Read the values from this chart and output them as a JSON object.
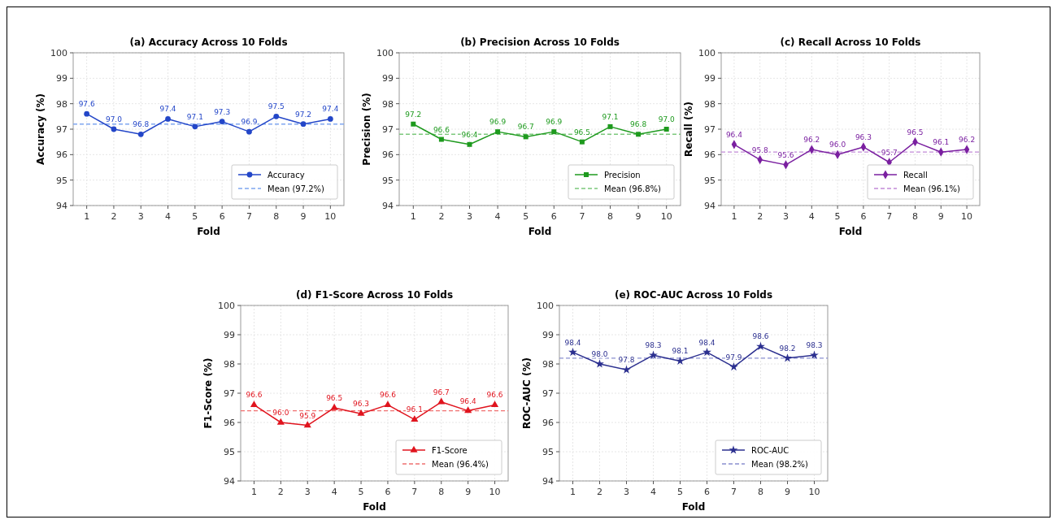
{
  "chart_data": [
    {
      "type": "line",
      "title": "(a) Accuracy Across 10 Folds",
      "xlabel": "Fold",
      "ylabel": "Accuracy (%)",
      "categories": [
        "1",
        "2",
        "3",
        "4",
        "5",
        "6",
        "7",
        "8",
        "9",
        "10"
      ],
      "series": [
        {
          "name": "Accuracy",
          "color": "#2346c8",
          "values": [
            97.6,
            97.0,
            96.8,
            97.4,
            97.1,
            97.3,
            96.9,
            97.5,
            97.2,
            97.4
          ],
          "value_labels": [
            "97.6",
            "97.0",
            "96.8",
            "97.4",
            "97.1",
            "97.3",
            "96.9",
            "97.5",
            "97.2",
            "97.4"
          ]
        }
      ],
      "ref_lines": [
        {
          "axis": "y",
          "value": 97.2,
          "label": "Mean (97.2%)",
          "color": "#7fa6f0",
          "line_style": "dashed"
        }
      ],
      "ylim": [
        94,
        100
      ],
      "yticks": [
        94,
        95,
        96,
        97,
        98,
        99,
        100
      ],
      "grid": true,
      "legend": "bottom right",
      "marker": "circle"
    },
    {
      "type": "line",
      "title": "(b) Precision Across 10 Folds",
      "xlabel": "Fold",
      "ylabel": "Precision (%)",
      "categories": [
        "1",
        "2",
        "3",
        "4",
        "5",
        "6",
        "7",
        "8",
        "9",
        "10"
      ],
      "series": [
        {
          "name": "Precision",
          "color": "#1e9a1e",
          "values": [
            97.2,
            96.6,
            96.4,
            96.9,
            96.7,
            96.9,
            96.5,
            97.1,
            96.8,
            97.0
          ],
          "value_labels": [
            "97.2",
            "96.6",
            "96.4",
            "96.9",
            "96.7",
            "96.9",
            "96.5",
            "97.1",
            "96.8",
            "97.0"
          ]
        }
      ],
      "ref_lines": [
        {
          "axis": "y",
          "value": 96.8,
          "label": "Mean (96.8%)",
          "color": "#7cc87c",
          "line_style": "dashed"
        }
      ],
      "ylim": [
        94,
        100
      ],
      "yticks": [
        94,
        95,
        96,
        97,
        98,
        99,
        100
      ],
      "grid": true,
      "legend": "bottom right",
      "marker": "square"
    },
    {
      "type": "line",
      "title": "(c) Recall Across 10 Folds",
      "xlabel": "Fold",
      "ylabel": "Recall (%)",
      "categories": [
        "1",
        "2",
        "3",
        "4",
        "5",
        "6",
        "7",
        "8",
        "9",
        "10"
      ],
      "series": [
        {
          "name": "Recall",
          "color": "#7a1fa0",
          "values": [
            96.4,
            95.8,
            95.6,
            96.2,
            96.0,
            96.3,
            95.7,
            96.5,
            96.1,
            96.2
          ],
          "value_labels": [
            "96.4",
            "95.8",
            "95.6",
            "96.2",
            "96.0",
            "96.3",
            "95.7",
            "96.5",
            "96.1",
            "96.2"
          ]
        }
      ],
      "ref_lines": [
        {
          "axis": "y",
          "value": 96.1,
          "label": "Mean (96.1%)",
          "color": "#c28ad8",
          "line_style": "dashed"
        }
      ],
      "ylim": [
        94,
        100
      ],
      "yticks": [
        94,
        95,
        96,
        97,
        98,
        99,
        100
      ],
      "grid": true,
      "legend": "bottom right",
      "marker": "diamond"
    },
    {
      "type": "line",
      "title": "(d) F1-Score Across 10 Folds",
      "xlabel": "Fold",
      "ylabel": "F1-Score (%)",
      "categories": [
        "1",
        "2",
        "3",
        "4",
        "5",
        "6",
        "7",
        "8",
        "9",
        "10"
      ],
      "series": [
        {
          "name": "F1-Score",
          "color": "#e0141e",
          "values": [
            96.6,
            96.0,
            95.9,
            96.5,
            96.3,
            96.6,
            96.1,
            96.7,
            96.4,
            96.6
          ],
          "value_labels": [
            "96.6",
            "96.0",
            "95.9",
            "96.5",
            "96.3",
            "96.6",
            "96.1",
            "96.7",
            "96.4",
            "96.6"
          ]
        }
      ],
      "ref_lines": [
        {
          "axis": "y",
          "value": 96.4,
          "label": "Mean (96.4%)",
          "color": "#f07070",
          "line_style": "dashed"
        }
      ],
      "ylim": [
        94,
        100
      ],
      "yticks": [
        94,
        95,
        96,
        97,
        98,
        99,
        100
      ],
      "grid": true,
      "legend": "bottom right",
      "marker": "triangle"
    },
    {
      "type": "line",
      "title": "(e) ROC-AUC Across 10 Folds",
      "xlabel": "Fold",
      "ylabel": "ROC-AUC (%)",
      "categories": [
        "1",
        "2",
        "3",
        "4",
        "5",
        "6",
        "7",
        "8",
        "9",
        "10"
      ],
      "series": [
        {
          "name": "ROC-AUC",
          "color": "#2b2f8f",
          "values": [
            98.4,
            98.0,
            97.8,
            98.3,
            98.1,
            98.4,
            97.9,
            98.6,
            98.2,
            98.3
          ],
          "value_labels": [
            "98.4",
            "98.0",
            "97.8",
            "98.3",
            "98.1",
            "98.4",
            "97.9",
            "98.6",
            "98.2",
            "98.3"
          ]
        }
      ],
      "ref_lines": [
        {
          "axis": "y",
          "value": 98.2,
          "label": "Mean (98.2%)",
          "color": "#8a8fd0",
          "line_style": "dashed"
        }
      ],
      "ylim": [
        94,
        100
      ],
      "yticks": [
        94,
        95,
        96,
        97,
        98,
        99,
        100
      ],
      "grid": true,
      "legend": "bottom right",
      "marker": "star"
    }
  ]
}
